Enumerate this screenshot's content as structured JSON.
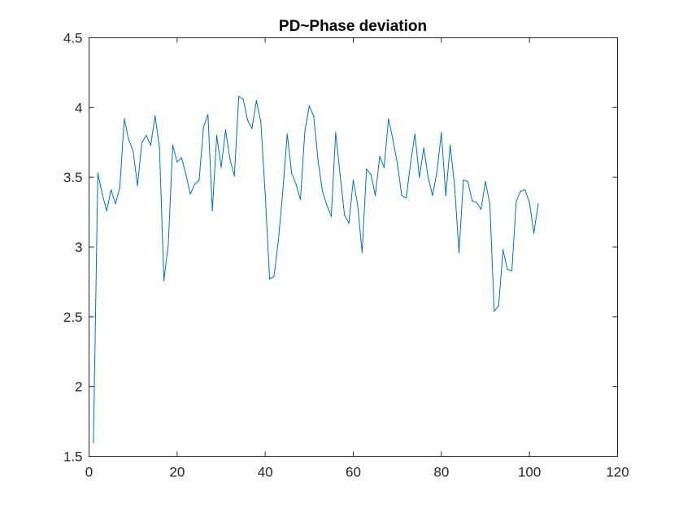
{
  "chart_data": {
    "type": "line",
    "title": "PD~Phase deviation",
    "xlabel": "",
    "ylabel": "",
    "xlim": [
      0,
      120
    ],
    "ylim": [
      1.5,
      4.5
    ],
    "xticks": [
      0,
      20,
      40,
      60,
      80,
      100,
      120
    ],
    "yticks": [
      1.5,
      2,
      2.5,
      3,
      3.5,
      4,
      4.5
    ],
    "xtick_labels": [
      "0",
      "20",
      "40",
      "60",
      "80",
      "100",
      "120"
    ],
    "ytick_labels": [
      "1.5",
      "2",
      "2.5",
      "3",
      "3.5",
      "4",
      "4.5"
    ],
    "grid": false,
    "line_color": "#0072BD",
    "series": [
      {
        "x": [
          1,
          2,
          3,
          4,
          5,
          6,
          7,
          8,
          9,
          10,
          11,
          12,
          13,
          14,
          15,
          16,
          17,
          18,
          19,
          20,
          21,
          22,
          23,
          24,
          25,
          26,
          27,
          28,
          29,
          30,
          31,
          32,
          33,
          34,
          35,
          36,
          37,
          38,
          39,
          40,
          41,
          42,
          43,
          44,
          45,
          46,
          47,
          48,
          49,
          50,
          51,
          52,
          53,
          54,
          55,
          56,
          57,
          58,
          59,
          60,
          61,
          62,
          63,
          64,
          65,
          66,
          67,
          68,
          69,
          70,
          71,
          72,
          73,
          74,
          75,
          76,
          77,
          78,
          79,
          80,
          81,
          82,
          83,
          84,
          85,
          86,
          87,
          88,
          89,
          90,
          91,
          92,
          93,
          94,
          95,
          96,
          97,
          98,
          99,
          100,
          101,
          102
        ],
        "values": [
          1.6,
          3.53,
          3.38,
          3.26,
          3.41,
          3.31,
          3.43,
          3.92,
          3.77,
          3.69,
          3.44,
          3.75,
          3.8,
          3.73,
          3.94,
          3.71,
          2.76,
          3.02,
          3.73,
          3.61,
          3.64,
          3.52,
          3.38,
          3.45,
          3.48,
          3.86,
          3.95,
          3.26,
          3.8,
          3.57,
          3.84,
          3.63,
          3.51,
          4.08,
          4.06,
          3.91,
          3.85,
          4.05,
          3.9,
          3.38,
          2.77,
          2.79,
          3.05,
          3.4,
          3.81,
          3.53,
          3.45,
          3.34,
          3.83,
          4.01,
          3.94,
          3.62,
          3.4,
          3.3,
          3.22,
          3.82,
          3.52,
          3.23,
          3.17,
          3.48,
          3.3,
          2.96,
          3.56,
          3.52,
          3.37,
          3.65,
          3.57,
          3.92,
          3.77,
          3.6,
          3.37,
          3.35,
          3.6,
          3.81,
          3.5,
          3.71,
          3.5,
          3.37,
          3.54,
          3.82,
          3.37,
          3.73,
          3.44,
          2.96,
          3.48,
          3.47,
          3.33,
          3.32,
          3.27,
          3.47,
          3.31,
          2.54,
          2.58,
          2.98,
          2.84,
          2.83,
          3.33,
          3.4,
          3.41,
          3.32,
          3.1,
          3.31
        ]
      }
    ]
  }
}
